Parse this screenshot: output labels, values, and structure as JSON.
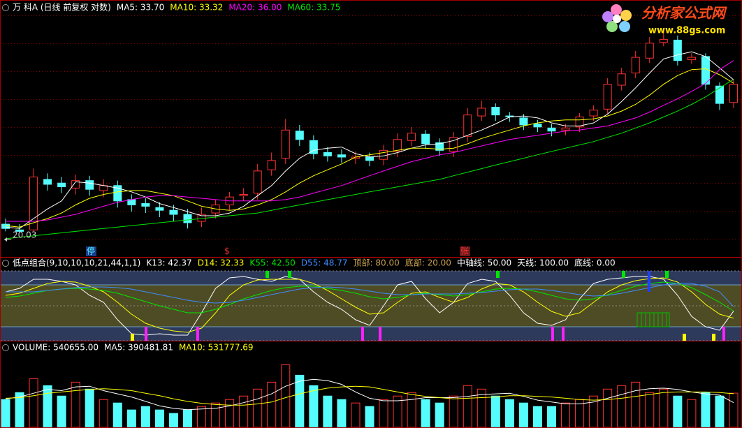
{
  "chart_data": [
    {
      "type": "candlestick",
      "title": "万 科A (日线 前复权 对数)",
      "log_scale": true,
      "ylim": [
        19,
        42
      ],
      "up_color": "#ff3232",
      "down_color": "#54fcfc",
      "open": [
        20.6,
        20.2,
        20.2,
        24.0,
        23.7,
        23.3,
        23.9,
        23.1,
        23.5,
        22.4,
        22.1,
        21.8,
        21.6,
        21.3,
        20.8,
        21.4,
        22.0,
        22.7,
        22.9,
        24.8,
        25.8,
        28.3,
        27.4,
        26.3,
        26.1,
        25.8,
        25.9,
        25.7,
        26.4,
        27.4,
        28.0,
        27.2,
        26.4,
        27.8,
        29.8,
        30.7,
        29.8,
        29.6,
        29.0,
        28.6,
        28.4,
        28.7,
        29.8,
        30.5,
        33.1,
        34.5,
        36.3,
        38.3,
        38.6,
        36.1,
        36.5,
        33.0,
        31.2
      ],
      "high": [
        21.0,
        20.6,
        24.9,
        24.5,
        24.2,
        24.4,
        24.3,
        24.0,
        23.9,
        22.8,
        22.5,
        22.2,
        22.0,
        21.7,
        21.8,
        22.4,
        23.0,
        23.3,
        25.3,
        26.3,
        29.5,
        28.9,
        27.9,
        26.8,
        26.6,
        26.4,
        26.3,
        27.0,
        28.1,
        28.7,
        28.4,
        27.6,
        28.2,
        30.6,
        31.4,
        31.1,
        30.2,
        30.0,
        29.4,
        29.0,
        29.0,
        30.1,
        30.9,
        33.9,
        35.1,
        37.2,
        39.0,
        39.8,
        39.2,
        36.9,
        36.9,
        33.4,
        33.8
      ],
      "low": [
        20.1,
        20.03,
        20.1,
        23.1,
        22.9,
        22.8,
        22.7,
        22.6,
        21.8,
        21.5,
        21.4,
        21.1,
        20.8,
        20.3,
        20.4,
        21.0,
        21.6,
        22.3,
        22.4,
        24.3,
        25.3,
        26.9,
        25.7,
        25.5,
        25.4,
        25.3,
        25.1,
        25.2,
        25.9,
        26.9,
        26.6,
        26.0,
        25.9,
        27.3,
        29.3,
        29.3,
        29.2,
        28.4,
        28.2,
        27.8,
        27.9,
        28.2,
        29.3,
        30.0,
        32.5,
        33.9,
        35.7,
        37.8,
        35.4,
        35.6,
        32.6,
        30.4,
        30.6
      ],
      "close": [
        20.3,
        20.1,
        24.2,
        23.6,
        23.4,
        23.9,
        23.2,
        23.5,
        22.3,
        22.0,
        21.9,
        21.6,
        21.3,
        20.7,
        21.3,
        22.0,
        22.6,
        22.8,
        24.7,
        25.6,
        28.4,
        27.5,
        26.2,
        26.0,
        25.9,
        25.9,
        25.6,
        26.5,
        27.5,
        28.1,
        27.1,
        26.5,
        27.7,
        29.9,
        30.6,
        29.9,
        29.7,
        28.9,
        28.7,
        28.3,
        28.6,
        29.7,
        30.4,
        33.2,
        34.4,
        36.4,
        38.2,
        38.7,
        36.0,
        36.4,
        33.2,
        31.1,
        33.2
      ],
      "series": [
        {
          "name": "MA5: 33.70",
          "color": "#ffffff",
          "values": [
            20.4,
            20.3,
            21.0,
            21.7,
            22.3,
            23.8,
            23.7,
            23.5,
            23.3,
            23.0,
            22.6,
            22.1,
            21.8,
            21.5,
            21.2,
            21.2,
            21.4,
            21.9,
            22.7,
            23.5,
            24.7,
            25.8,
            26.5,
            26.7,
            26.8,
            26.2,
            25.9,
            26.0,
            26.3,
            26.7,
            27.0,
            27.1,
            27.4,
            27.9,
            28.4,
            29.0,
            29.7,
            29.8,
            29.6,
            29.1,
            28.8,
            28.8,
            29.1,
            30.0,
            31.3,
            32.8,
            34.5,
            36.2,
            36.7,
            37.1,
            36.5,
            35.1,
            33.7
          ]
        },
        {
          "name": "MA10: 33.32",
          "color": "#ffff00",
          "values": [
            20.5,
            20.4,
            20.7,
            21.0,
            21.4,
            22.0,
            22.5,
            22.8,
            23.0,
            23.1,
            23.1,
            22.9,
            22.7,
            22.3,
            21.9,
            21.7,
            21.6,
            21.7,
            22.0,
            22.4,
            23.0,
            23.7,
            24.3,
            24.8,
            25.3,
            25.9,
            26.1,
            26.3,
            26.5,
            26.7,
            26.7,
            26.6,
            26.7,
            27.1,
            27.6,
            28.0,
            28.4,
            28.8,
            29.1,
            29.3,
            29.4,
            29.4,
            29.5,
            29.8,
            30.3,
            31.0,
            32.0,
            33.2,
            34.2,
            34.9,
            35.0,
            34.3,
            33.32
          ]
        },
        {
          "name": "MA20: 36.00",
          "color": "#ff00ff",
          "values": [
            20.8,
            20.8,
            20.8,
            20.9,
            21.1,
            21.3,
            21.6,
            21.9,
            22.2,
            22.4,
            22.6,
            22.7,
            22.7,
            22.6,
            22.5,
            22.4,
            22.3,
            22.3,
            22.3,
            22.3,
            22.4,
            22.6,
            22.9,
            23.2,
            23.5,
            23.9,
            24.3,
            24.7,
            25.1,
            25.5,
            25.8,
            26.1,
            26.3,
            26.6,
            26.9,
            27.2,
            27.5,
            27.7,
            27.9,
            28.1,
            28.3,
            28.4,
            28.6,
            28.8,
            29.2,
            29.6,
            30.2,
            30.9,
            31.6,
            32.4,
            33.3,
            34.9,
            36.0
          ]
        },
        {
          "name": "MA60: 33.75",
          "color": "#00e600",
          "values": [
            19.6,
            19.7,
            19.8,
            19.9,
            20.0,
            20.1,
            20.2,
            20.3,
            20.4,
            20.5,
            20.6,
            20.7,
            20.8,
            20.9,
            21.0,
            21.1,
            21.2,
            21.3,
            21.4,
            21.6,
            21.8,
            22.0,
            22.2,
            22.4,
            22.6,
            22.8,
            23.0,
            23.2,
            23.4,
            23.6,
            23.8,
            24.0,
            24.3,
            24.6,
            24.9,
            25.2,
            25.5,
            25.8,
            26.1,
            26.4,
            26.7,
            27.0,
            27.3,
            27.7,
            28.1,
            28.6,
            29.1,
            29.7,
            30.3,
            31.0,
            31.8,
            32.8,
            33.75
          ]
        }
      ],
      "annotations": [
        {
          "text": "停",
          "color": "#54fcfc"
        },
        {
          "text": "$",
          "color": "#ff3232"
        },
        {
          "text": "张",
          "color": "#ff3232"
        }
      ]
    },
    {
      "type": "line",
      "title": "低点组合(9,10,10,10,21,44,1,1)",
      "ylim": [
        0,
        100
      ],
      "series": [
        {
          "name": "K13: 42.37",
          "color": "#ffffff",
          "values": [
            70,
            75,
            88,
            88,
            85,
            80,
            65,
            55,
            30,
            10,
            8,
            10,
            8,
            8,
            40,
            75,
            90,
            92,
            88,
            85,
            92,
            88,
            70,
            55,
            45,
            30,
            22,
            50,
            80,
            85,
            60,
            40,
            55,
            82,
            88,
            85,
            65,
            40,
            25,
            22,
            30,
            60,
            82,
            88,
            90,
            92,
            92,
            88,
            65,
            35,
            20,
            15,
            42.37
          ]
        },
        {
          "name": "D14: 32.33",
          "color": "#ffff00",
          "values": [
            65,
            68,
            75,
            82,
            85,
            84,
            78,
            70,
            55,
            38,
            25,
            18,
            14,
            12,
            18,
            40,
            65,
            80,
            87,
            88,
            88,
            88,
            82,
            72,
            60,
            48,
            38,
            40,
            55,
            68,
            70,
            62,
            55,
            62,
            74,
            82,
            80,
            70,
            55,
            42,
            35,
            40,
            55,
            70,
            80,
            86,
            89,
            90,
            84,
            70,
            52,
            38,
            32.33
          ]
        },
        {
          "name": "K55: 42.50",
          "color": "#00e600",
          "values": [
            62,
            64,
            68,
            72,
            74,
            75,
            74,
            72,
            68,
            62,
            56,
            50,
            45,
            40,
            40,
            45,
            52,
            60,
            66,
            72,
            76,
            78,
            78,
            75,
            72,
            68,
            63,
            60,
            62,
            66,
            68,
            66,
            64,
            66,
            70,
            74,
            75,
            74,
            70,
            65,
            60,
            58,
            60,
            66,
            72,
            78,
            82,
            84,
            82,
            76,
            66,
            55,
            42.5
          ]
        },
        {
          "name": "D55: 48.77",
          "color": "#3c8cff",
          "values": [
            70,
            70,
            70,
            72,
            74,
            76,
            77,
            77,
            76,
            74,
            70,
            66,
            62,
            58,
            55,
            54,
            55,
            58,
            62,
            66,
            70,
            74,
            76,
            77,
            76,
            74,
            71,
            68,
            66,
            66,
            67,
            67,
            67,
            68,
            69,
            71,
            73,
            74,
            74,
            72,
            69,
            66,
            64,
            65,
            68,
            72,
            76,
            80,
            82,
            82,
            78,
            70,
            48.77
          ]
        }
      ],
      "levels": [
        {
          "value": 80,
          "label": "顶部: 80.00",
          "color": "#c8a050"
        },
        {
          "value": 20,
          "label": "底部: 20.00",
          "color": "#c8a050"
        },
        {
          "value": 50,
          "label": "中轴线: 50.00",
          "color": "#ffffff"
        },
        {
          "value": 100,
          "label": "天线: 100.00",
          "color": "#ffffff"
        },
        {
          "value": 0,
          "label": "底线: 0.00",
          "color": "#ffffff"
        }
      ]
    },
    {
      "type": "bar",
      "ylim": [
        0,
        1150000
      ],
      "series": [
        {
          "name": "VOLUME: 540655.00",
          "color": "#ffffff",
          "values": [
            440000,
            550000,
            770000,
            660000,
            495000,
            715000,
            605000,
            440000,
            385000,
            275000,
            330000,
            275000,
            220000,
            275000,
            330000,
            385000,
            440000,
            495000,
            605000,
            715000,
            990000,
            825000,
            660000,
            495000,
            440000,
            385000,
            330000,
            440000,
            495000,
            550000,
            440000,
            385000,
            495000,
            660000,
            605000,
            495000,
            440000,
            385000,
            330000,
            330000,
            385000,
            440000,
            495000,
            605000,
            660000,
            715000,
            550000,
            605000,
            495000,
            440000,
            550000,
            495000,
            540655
          ]
        },
        {
          "name": "MA5: 390481.81",
          "color": "#ffffff",
          "values": [
            450000,
            480000,
            540000,
            600000,
            580000,
            640000,
            650000,
            580000,
            530000,
            480000,
            410000,
            340000,
            300000,
            280000,
            290000,
            300000,
            340000,
            390000,
            450000,
            530000,
            650000,
            730000,
            760000,
            740000,
            680000,
            560000,
            460000,
            420000,
            420000,
            440000,
            470000,
            470000,
            470000,
            490000,
            520000,
            530000,
            540000,
            490000,
            430000,
            400000,
            370000,
            370000,
            400000,
            460000,
            520000,
            580000,
            610000,
            620000,
            600000,
            560000,
            530000,
            510000,
            390481.81
          ]
        },
        {
          "name": "MA10: 531777.69",
          "color": "#ffff00",
          "values": [
            460000,
            470000,
            500000,
            540000,
            560000,
            580000,
            600000,
            610000,
            600000,
            580000,
            540000,
            500000,
            450000,
            410000,
            380000,
            360000,
            350000,
            350000,
            370000,
            400000,
            470000,
            530000,
            580000,
            620000,
            640000,
            650000,
            640000,
            600000,
            560000,
            520000,
            490000,
            470000,
            450000,
            460000,
            470000,
            480000,
            500000,
            500000,
            490000,
            480000,
            460000,
            440000,
            430000,
            440000,
            460000,
            490000,
            520000,
            550000,
            560000,
            560000,
            560000,
            550000,
            531777.69
          ]
        }
      ]
    }
  ],
  "watermark": {
    "name": "分析家公式网",
    "url": "www.88gs.com"
  }
}
